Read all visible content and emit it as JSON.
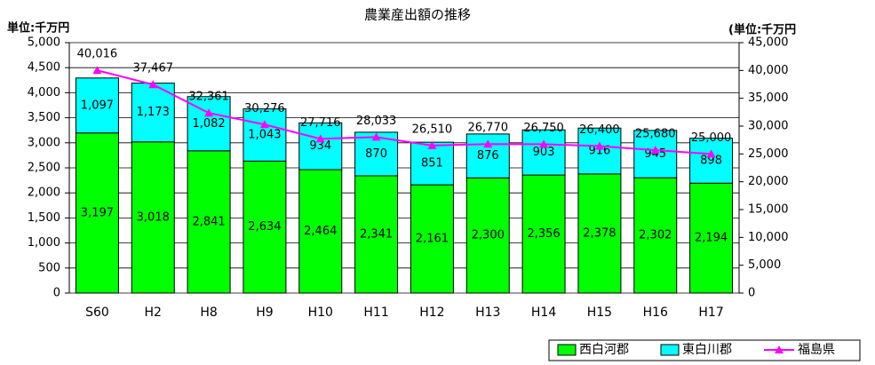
{
  "chart_data": {
    "type": "bar",
    "stacked": true,
    "title": "農業産出額の推移",
    "y_label": "単位:千万円",
    "y2_label": "(単位:千万円",
    "categories": [
      "S60",
      "H2",
      "H8",
      "H9",
      "H10",
      "H11",
      "H12",
      "H13",
      "H14",
      "H15",
      "H16",
      "H17"
    ],
    "series": [
      {
        "name": "西白河郡",
        "color": "#00ff00",
        "values": [
          3197,
          3018,
          2841,
          2634,
          2464,
          2341,
          2161,
          2300,
          2356,
          2378,
          2302,
          2194
        ],
        "value_labels": [
          "3,197",
          "3,018",
          "2,841",
          "2,634",
          "2,464",
          "2,341",
          "2,161",
          "2,300",
          "2,356",
          "2,378",
          "2,302",
          "2,194"
        ]
      },
      {
        "name": "東白川郡",
        "color": "#00ffff",
        "values": [
          1097,
          1173,
          1082,
          1043,
          934,
          870,
          851,
          876,
          903,
          916,
          945,
          898
        ],
        "value_labels": [
          "1,097",
          "1,173",
          "1,082",
          "1,043",
          "934",
          "870",
          "851",
          "876",
          "903",
          "916",
          "945",
          "898"
        ]
      },
      {
        "name": "福島県",
        "color": "#ff00ff",
        "axis": "y2",
        "values": [
          40016,
          37467,
          32361,
          30276,
          27716,
          28033,
          26510,
          26770,
          26750,
          26400,
          25680,
          25000
        ],
        "value_labels": [
          "40,016",
          "37,467",
          "32,361",
          "30,276",
          "27,716",
          "28,033",
          "26,510",
          "26,770",
          "26,750",
          "26,400",
          "25,680",
          "25,000"
        ]
      }
    ],
    "ylim": [
      0,
      5000
    ],
    "yticks": [
      0,
      500,
      {
        "value": 1000,
        "label": "1,000"
      },
      {
        "value": 1500,
        "label": "1,500"
      },
      {
        "value": 2000,
        "label": "2,000"
      },
      {
        "value": 2500,
        "label": "2,500"
      },
      {
        "value": 3000,
        "label": "3,000"
      },
      {
        "value": 3500,
        "label": "3,500"
      },
      {
        "value": 4000,
        "label": "4,000"
      },
      {
        "value": 4500,
        "label": "4,500"
      },
      {
        "value": 5000,
        "label": "5,000"
      }
    ],
    "y2lim": [
      0,
      45000
    ],
    "y2ticks": [
      0,
      {
        "value": 5000,
        "label": "5,000"
      },
      {
        "value": 10000,
        "label": "10,000"
      },
      {
        "value": 15000,
        "label": "15,000"
      },
      {
        "value": 20000,
        "label": "20,000"
      },
      {
        "value": 25000,
        "label": "25,000"
      },
      {
        "value": 30000,
        "label": "30,000"
      },
      {
        "value": 35000,
        "label": "35,000"
      },
      {
        "value": 40000,
        "label": "40,000"
      },
      {
        "value": 45000,
        "label": "45,000"
      }
    ],
    "grid": true,
    "legend": "bottom-right"
  }
}
